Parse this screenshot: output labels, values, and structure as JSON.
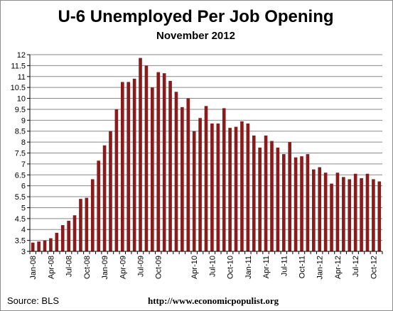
{
  "chart_data": {
    "type": "bar",
    "title": "U-6 Unemployed Per Job Opening",
    "subtitle": "November 2012",
    "xlabel": "",
    "ylabel": "",
    "ylim": [
      3,
      12
    ],
    "yticks": [
      3,
      3.5,
      4,
      4.5,
      5,
      5.5,
      6,
      6.5,
      7,
      7.5,
      8,
      8.5,
      9,
      9.5,
      10,
      10.5,
      11,
      11.5,
      12
    ],
    "ytick_labels": [
      "3",
      "3.5",
      "4",
      "4.5",
      "5",
      "5.5",
      "6",
      "6.5",
      "7",
      "7.5",
      "8",
      "8.5",
      "9",
      "9.5",
      "10",
      "10.5",
      "11",
      "11.5",
      "12"
    ],
    "grid": "horizontal",
    "bar_color": "#8b1a1a",
    "categories": [
      "Jan-08",
      "Feb-08",
      "Mar-08",
      "Apr-08",
      "May-08",
      "Jun-08",
      "Jul-08",
      "Aug-08",
      "Sep-08",
      "Oct-08",
      "Nov-08",
      "Dec-08",
      "Jan-09",
      "Feb-09",
      "Mar-09",
      "Apr-09",
      "May-09",
      "Jun-09",
      "Jul-09",
      "Aug-09",
      "Sep-09",
      "Oct-09",
      "Nov-09",
      "Dec-09",
      "Jan-10",
      "Feb-10",
      "Mar-10",
      "Apr-10",
      "May-10",
      "Jun-10",
      "Jul-10",
      "Aug-10",
      "Sep-10",
      "Oct-10",
      "Nov-10",
      "Dec-10",
      "Jan-11",
      "Feb-11",
      "Mar-11",
      "Apr-11",
      "May-11",
      "Jun-11",
      "Jul-11",
      "Aug-11",
      "Sep-11",
      "Oct-11",
      "Nov-11",
      "Dec-11",
      "Jan-12",
      "Feb-12",
      "Mar-12",
      "Apr-12",
      "May-12",
      "Jun-12",
      "Jul-12",
      "Aug-12",
      "Sep-12",
      "Oct-12",
      "Nov-12"
    ],
    "xtick_labels": [
      "Jan-08",
      "Apr-08",
      "Jul-08",
      "Oct-08",
      "Jan-09",
      "Apr-09",
      "Jul-09",
      "Oct-09",
      "Apr-10",
      "Jul-10",
      "Oct-10",
      "Jan-11",
      "Apr-11",
      "Jul-11",
      "Oct-11",
      "Jan-12",
      "Apr-12",
      "Jul-12",
      "Oct-12"
    ],
    "values": [
      3.4,
      3.45,
      3.5,
      3.6,
      3.85,
      4.2,
      4.4,
      4.65,
      5.4,
      5.45,
      6.3,
      7.15,
      7.85,
      8.5,
      9.5,
      10.75,
      10.75,
      10.9,
      11.85,
      11.5,
      10.5,
      11.2,
      11.15,
      10.8,
      10.3,
      9.6,
      10.0,
      8.5,
      9.1,
      9.65,
      8.85,
      8.85,
      9.55,
      8.65,
      8.7,
      8.95,
      8.85,
      8.3,
      7.75,
      8.3,
      8.05,
      7.75,
      7.45,
      8.0,
      7.3,
      7.35,
      7.45,
      6.75,
      6.85,
      6.6,
      6.1,
      6.6,
      6.4,
      6.3,
      6.55,
      6.35,
      6.55,
      6.3,
      6.2
    ]
  },
  "footer": {
    "source": "Source:  BLS",
    "url": "http://www.economicpopulist.org"
  }
}
